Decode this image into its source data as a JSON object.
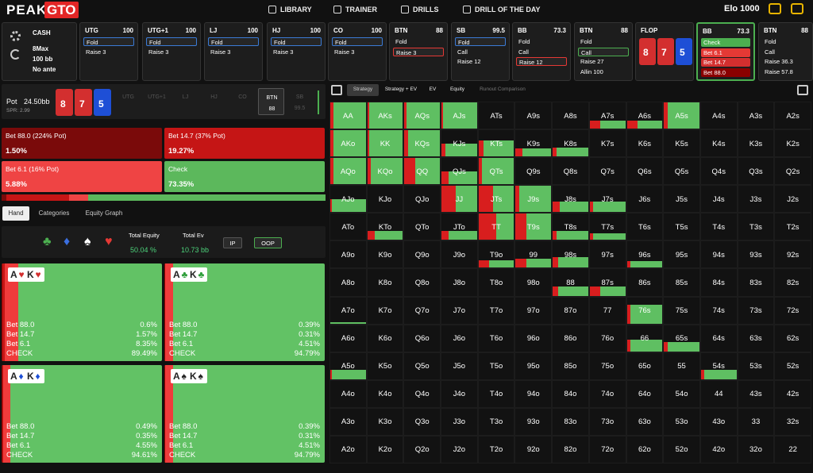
{
  "nav": {
    "logo_left": "PEAK",
    "logo_right": "GTO",
    "items": [
      "LIBRARY",
      "TRAINER",
      "DRILLS",
      "DRILL OF THE DAY"
    ],
    "elo": "Elo 1000"
  },
  "game": {
    "format": "CASH",
    "table": "8Max",
    "stack": "100 bb",
    "ante": "No ante"
  },
  "actions": [
    {
      "position": "UTG",
      "stack": "100",
      "options": [
        "Fold",
        "Raise 3"
      ],
      "selected": 0,
      "selected_color": "#3b7bd6"
    },
    {
      "position": "UTG+1",
      "stack": "100",
      "options": [
        "Fold",
        "Raise 3"
      ],
      "selected": 0,
      "selected_color": "#3b7bd6"
    },
    {
      "position": "LJ",
      "stack": "100",
      "options": [
        "Fold",
        "Raise 3"
      ],
      "selected": 0,
      "selected_color": "#3b7bd6"
    },
    {
      "position": "HJ",
      "stack": "100",
      "options": [
        "Fold",
        "Raise 3"
      ],
      "selected": 0,
      "selected_color": "#3b7bd6"
    },
    {
      "position": "CO",
      "stack": "100",
      "options": [
        "Fold",
        "Raise 3"
      ],
      "selected": 0,
      "selected_color": "#3b7bd6"
    },
    {
      "position": "BTN",
      "stack": "88",
      "options": [
        "Fold",
        "Raise 3"
      ],
      "selected": 1,
      "selected_color": "#e53935"
    },
    {
      "position": "SB",
      "stack": "99.5",
      "options": [
        "Fold",
        "Call",
        "Raise 12"
      ],
      "selected": 0,
      "selected_color": "#3b7bd6"
    },
    {
      "position": "BB",
      "stack": "73.3",
      "options": [
        "Fold",
        "Call",
        "Raise 12"
      ],
      "selected": 2,
      "selected_color": "#e53935"
    },
    {
      "position": "BTN",
      "stack": "88",
      "options": [
        "Fold",
        "Call",
        "Raise 27",
        "Allin 100"
      ],
      "selected": 1,
      "selected_color": "#4caf50"
    },
    {
      "position": "FLOP",
      "board": [
        {
          "rank": "8",
          "color": "#d32f2f"
        },
        {
          "rank": "7",
          "color": "#d32f2f"
        },
        {
          "rank": "5",
          "color": "#1e4fd6"
        }
      ]
    },
    {
      "position": "BB",
      "stack": "73.3",
      "options": [
        "Check",
        "Bet 6.1",
        "Bet 14.7",
        "Bet 88.0"
      ],
      "option_fills": [
        "#4caf50",
        "#e53935",
        "#d32f2f",
        "#8b0000"
      ],
      "active": true
    },
    {
      "position": "BTN",
      "stack": "88",
      "options": [
        "Fold",
        "Call",
        "Raise 36.3",
        "Raise 57.8"
      ]
    }
  ],
  "pot": {
    "label": "Pot",
    "value": "24.50bb",
    "spr": "SPR: 2.99",
    "board": [
      {
        "rank": "8",
        "color": "#d32f2f"
      },
      {
        "rank": "7",
        "color": "#d32f2f"
      },
      {
        "rank": "5",
        "color": "#1e4fd6"
      }
    ],
    "seats": [
      {
        "position": "UTG"
      },
      {
        "position": "UTG+1"
      },
      {
        "position": "LJ"
      },
      {
        "position": "HJ"
      },
      {
        "position": "CO"
      },
      {
        "position": "BTN",
        "stack": "88",
        "active": true
      },
      {
        "position": "SB",
        "stack": "99.5"
      }
    ]
  },
  "summary": [
    {
      "label": "Bet 88.0 (224% Pot)",
      "freq": 1.5,
      "freq_label": "1.50%",
      "color": "#7a0a0a"
    },
    {
      "label": "Bet 14.7 (37% Pot)",
      "freq": 19.27,
      "freq_label": "19.27%",
      "color": "#c51515"
    },
    {
      "label": "Bet 6.1 (16% Pot)",
      "freq": 5.88,
      "freq_label": "5.88%",
      "color": "#ef4444"
    },
    {
      "label": "Check",
      "freq": 73.35,
      "freq_label": "73.35%",
      "color": "#5cb85c"
    }
  ],
  "tabs": [
    "Hand",
    "Categories",
    "Equity Graph"
  ],
  "equity": {
    "suits": [
      {
        "symbol": "♣",
        "color": "#4caf50"
      },
      {
        "symbol": "♦",
        "color": "#3b6fe0"
      },
      {
        "symbol": "♠",
        "color": "#ffffff"
      },
      {
        "symbol": "♥",
        "color": "#e53935"
      }
    ],
    "total_equity_label": "Total Equity",
    "total_equity": "50.04 %",
    "total_ev_label": "Total Ev",
    "total_ev": "10.73 bb",
    "buttons": [
      "IP",
      "OOP"
    ]
  },
  "combos": [
    {
      "rank1": "A",
      "suit1": "♥",
      "rank2": "K",
      "suit2": "♥",
      "color": "#d32f2f",
      "rows": [
        {
          "action": "Bet 88.0",
          "freq": 0.6,
          "label": "0.6%"
        },
        {
          "action": "Bet 14.7",
          "freq": 1.57,
          "label": "1.57%"
        },
        {
          "action": "Bet 6.1",
          "freq": 8.35,
          "label": "8.35%"
        },
        {
          "action": "CHECK",
          "freq": 89.49,
          "label": "89.49%"
        }
      ]
    },
    {
      "rank1": "A",
      "suit1": "♣",
      "rank2": "K",
      "suit2": "♣",
      "color": "#2e9e3a",
      "rows": [
        {
          "action": "Bet 88.0",
          "freq": 0.39,
          "label": "0.39%"
        },
        {
          "action": "Bet 14.7",
          "freq": 0.31,
          "label": "0.31%"
        },
        {
          "action": "Bet 6.1",
          "freq": 4.51,
          "label": "4.51%"
        },
        {
          "action": "CHECK",
          "freq": 94.79,
          "label": "94.79%"
        }
      ]
    },
    {
      "rank1": "A",
      "suit1": "♦",
      "rank2": "K",
      "suit2": "♦",
      "color": "#1e4fd6",
      "rows": [
        {
          "action": "Bet 88.0",
          "freq": 0.49,
          "label": "0.49%"
        },
        {
          "action": "Bet 14.7",
          "freq": 0.35,
          "label": "0.35%"
        },
        {
          "action": "Bet 6.1",
          "freq": 4.55,
          "label": "4.55%"
        },
        {
          "action": "CHECK",
          "freq": 94.61,
          "label": "94.61%"
        }
      ]
    },
    {
      "rank1": "A",
      "suit1": "♠",
      "rank2": "K",
      "suit2": "♠",
      "color": "#222222",
      "rows": [
        {
          "action": "Bet 88.0",
          "freq": 0.39,
          "label": "0.39%"
        },
        {
          "action": "Bet 14.7",
          "freq": 0.31,
          "label": "0.31%"
        },
        {
          "action": "Bet 6.1",
          "freq": 4.51,
          "label": "4.51%"
        },
        {
          "action": "CHECK",
          "freq": 94.79,
          "label": "94.79%"
        }
      ]
    }
  ],
  "grid_tabs": [
    "Strategy",
    "Strategy + EV",
    "EV",
    "Equity",
    "Runout Comparison"
  ],
  "grid": [
    [
      "AA",
      "AKs",
      "AQs",
      "AJs",
      "ATs",
      "A9s",
      "A8s",
      "A7s",
      "A6s",
      "A5s",
      "A4s",
      "A3s",
      "A2s"
    ],
    [
      "AKo",
      "KK",
      "KQs",
      "KJs",
      "KTs",
      "K9s",
      "K8s",
      "K7s",
      "K6s",
      "K5s",
      "K4s",
      "K3s",
      "K2s"
    ],
    [
      "AQo",
      "KQo",
      "QQ",
      "QJs",
      "QTs",
      "Q9s",
      "Q8s",
      "Q7s",
      "Q6s",
      "Q5s",
      "Q4s",
      "Q3s",
      "Q2s"
    ],
    [
      "AJo",
      "KJo",
      "QJo",
      "JJ",
      "JTs",
      "J9s",
      "J8s",
      "J7s",
      "J6s",
      "J5s",
      "J4s",
      "J3s",
      "J2s"
    ],
    [
      "ATo",
      "KTo",
      "QTo",
      "JTo",
      "TT",
      "T9s",
      "T8s",
      "T7s",
      "T6s",
      "T5s",
      "T4s",
      "T3s",
      "T2s"
    ],
    [
      "A9o",
      "K9o",
      "Q9o",
      "J9o",
      "T9o",
      "99",
      "98s",
      "97s",
      "96s",
      "95s",
      "94s",
      "93s",
      "92s"
    ],
    [
      "A8o",
      "K8o",
      "Q8o",
      "J8o",
      "T8o",
      "98o",
      "88",
      "87s",
      "86s",
      "85s",
      "84s",
      "83s",
      "82s"
    ],
    [
      "A7o",
      "K7o",
      "Q7o",
      "J7o",
      "T7o",
      "97o",
      "87o",
      "77",
      "76s",
      "75s",
      "74s",
      "73s",
      "72s"
    ],
    [
      "A6o",
      "K6o",
      "Q6o",
      "J6o",
      "T6o",
      "96o",
      "86o",
      "76o",
      "66",
      "65s",
      "64s",
      "63s",
      "62s"
    ],
    [
      "A5o",
      "K5o",
      "Q5o",
      "J5o",
      "T5o",
      "95o",
      "85o",
      "75o",
      "65o",
      "55",
      "54s",
      "53s",
      "52s"
    ],
    [
      "A4o",
      "K4o",
      "Q4o",
      "J4o",
      "T4o",
      "94o",
      "84o",
      "74o",
      "64o",
      "54o",
      "44",
      "43s",
      "42s"
    ],
    [
      "A3o",
      "K3o",
      "Q3o",
      "J3o",
      "T3o",
      "93o",
      "83o",
      "73o",
      "63o",
      "53o",
      "43o",
      "33",
      "32s"
    ],
    [
      "A2o",
      "K2o",
      "Q2o",
      "J2o",
      "T2o",
      "92o",
      "82o",
      "72o",
      "62o",
      "52o",
      "42o",
      "32o",
      "22"
    ]
  ],
  "weights": [
    [
      1,
      1,
      1,
      1,
      0,
      0,
      0,
      0.3,
      0.3,
      1,
      0,
      0,
      0
    ],
    [
      1,
      1,
      1,
      0.5,
      0.6,
      0.3,
      0.35,
      0,
      0,
      0,
      0,
      0,
      0
    ],
    [
      1,
      1,
      1,
      0.5,
      1,
      0,
      0,
      0,
      0,
      0,
      0,
      0,
      0
    ],
    [
      0.5,
      0,
      0,
      1,
      1,
      1,
      0.4,
      0.4,
      0,
      0,
      0,
      0,
      0
    ],
    [
      0,
      0.35,
      0,
      0.35,
      1,
      1,
      0.35,
      0.25,
      0,
      0,
      0,
      0,
      0
    ],
    [
      0,
      0,
      0,
      0,
      0.3,
      0.35,
      0.4,
      0,
      0.25,
      0,
      0,
      0,
      0
    ],
    [
      0,
      0,
      0,
      0,
      0,
      0,
      0.35,
      0.35,
      0,
      0,
      0,
      0,
      0
    ],
    [
      0.05,
      0,
      0,
      0,
      0,
      0,
      0,
      0,
      0.7,
      0,
      0,
      0,
      0
    ],
    [
      0,
      0,
      0,
      0,
      0,
      0,
      0,
      0,
      0.45,
      0.35,
      0,
      0,
      0
    ],
    [
      0.35,
      0,
      0,
      0,
      0,
      0,
      0,
      0,
      0,
      0,
      0.35,
      0,
      0
    ],
    [
      0,
      0,
      0,
      0,
      0,
      0,
      0,
      0,
      0,
      0,
      0,
      0,
      0
    ],
    [
      0,
      0,
      0,
      0,
      0,
      0,
      0,
      0,
      0,
      0,
      0,
      0,
      0
    ],
    [
      0,
      0,
      0,
      0,
      0,
      0,
      0,
      0,
      0,
      0,
      0,
      0,
      0
    ]
  ],
  "bets": [
    [
      0.1,
      0.05,
      0.05,
      0.05,
      0,
      0,
      0,
      0.3,
      0.3,
      0.1,
      0,
      0,
      0
    ],
    [
      0.1,
      0.05,
      0.1,
      0.1,
      0.15,
      0.2,
      0.1,
      0,
      0,
      0,
      0,
      0,
      0
    ],
    [
      0.1,
      0.1,
      0.3,
      0.2,
      0.1,
      0,
      0,
      0,
      0,
      0,
      0,
      0,
      0
    ],
    [
      0.05,
      0,
      0,
      0.4,
      0.4,
      0.1,
      0.2,
      0.1,
      0,
      0,
      0,
      0,
      0
    ],
    [
      0,
      0.2,
      0,
      0.2,
      0.5,
      0.3,
      0.1,
      0.1,
      0,
      0,
      0,
      0,
      0
    ],
    [
      0,
      0,
      0,
      0,
      0.3,
      0.3,
      0.15,
      0,
      0.1,
      0,
      0,
      0,
      0
    ],
    [
      0,
      0,
      0,
      0,
      0,
      0,
      0.15,
      0.3,
      0,
      0,
      0,
      0,
      0
    ],
    [
      0,
      0,
      0,
      0,
      0,
      0,
      0,
      0,
      0.1,
      0,
      0,
      0,
      0
    ],
    [
      0,
      0,
      0,
      0,
      0,
      0,
      0,
      0,
      0.1,
      0.1,
      0,
      0,
      0
    ],
    [
      0.05,
      0,
      0,
      0,
      0,
      0,
      0,
      0,
      0,
      0,
      0.1,
      0,
      0
    ],
    [
      0,
      0,
      0,
      0,
      0,
      0,
      0,
      0,
      0,
      0,
      0,
      0,
      0
    ],
    [
      0,
      0,
      0,
      0,
      0,
      0,
      0,
      0,
      0,
      0,
      0,
      0,
      0
    ],
    [
      0,
      0,
      0,
      0,
      0,
      0,
      0,
      0,
      0,
      0,
      0,
      0,
      0
    ]
  ]
}
